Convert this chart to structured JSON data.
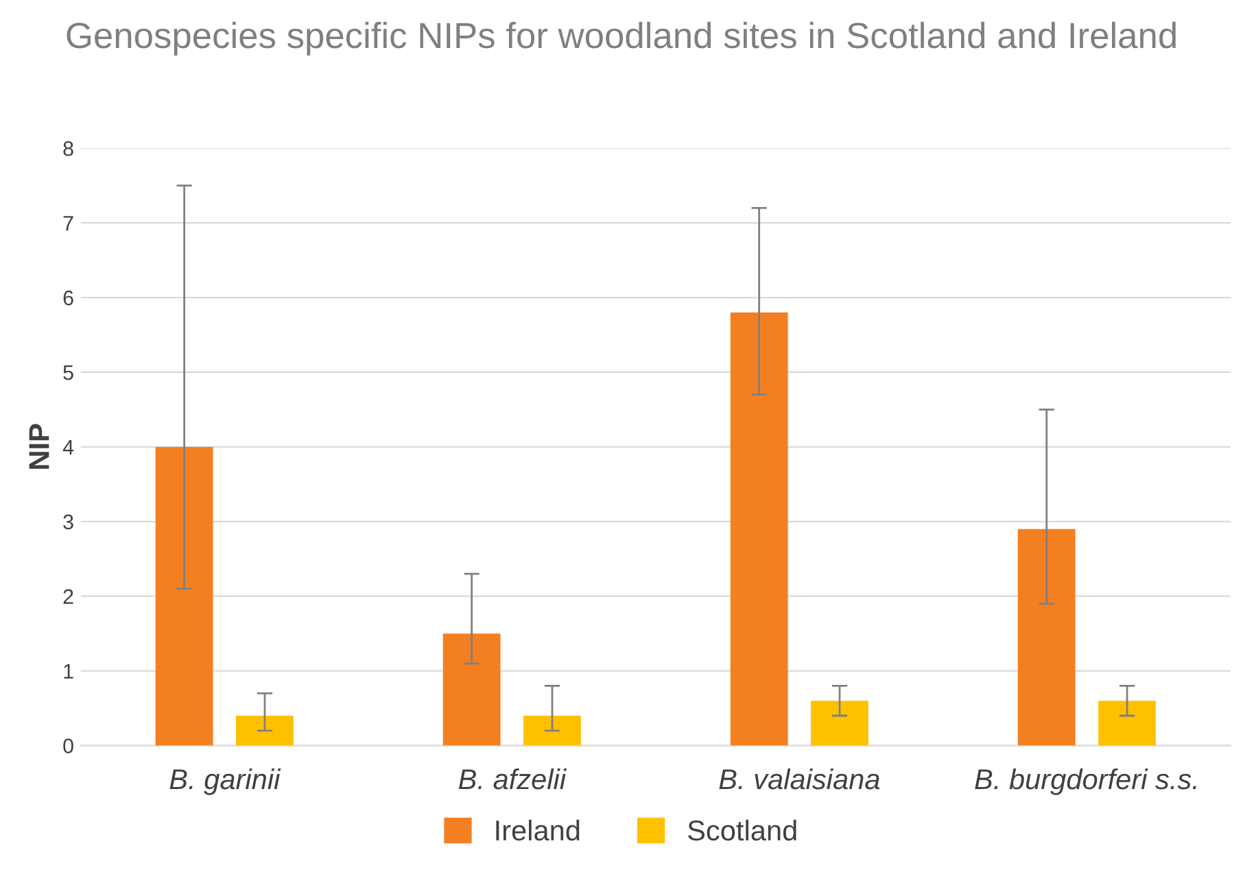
{
  "chart_data": {
    "type": "bar",
    "title": "Genospecies specific NIPs for woodland sites in Scotland and Ireland",
    "ylabel": "NIP",
    "categories": [
      "B. garinii",
      "B. afzelii",
      "B. valaisiana",
      "B. burgdorferi s.s."
    ],
    "series": [
      {
        "name": "Ireland",
        "color": "#f47f20",
        "values": [
          4.0,
          1.5,
          5.8,
          2.9
        ],
        "errors": [
          [
            2.1,
            7.5
          ],
          [
            1.1,
            2.3
          ],
          [
            4.7,
            7.2
          ],
          [
            1.9,
            4.5
          ]
        ]
      },
      {
        "name": "Scotland",
        "color": "#ffc000",
        "values": [
          0.4,
          0.4,
          0.6,
          0.6
        ],
        "errors": [
          [
            0.2,
            0.7
          ],
          [
            0.2,
            0.8
          ],
          [
            0.4,
            0.8
          ],
          [
            0.4,
            0.8
          ]
        ]
      }
    ],
    "ylim": [
      0,
      8
    ],
    "yticks": [
      0,
      1,
      2,
      3,
      4,
      5,
      6,
      7,
      8
    ],
    "grid": "y",
    "legend": "bottom"
  }
}
